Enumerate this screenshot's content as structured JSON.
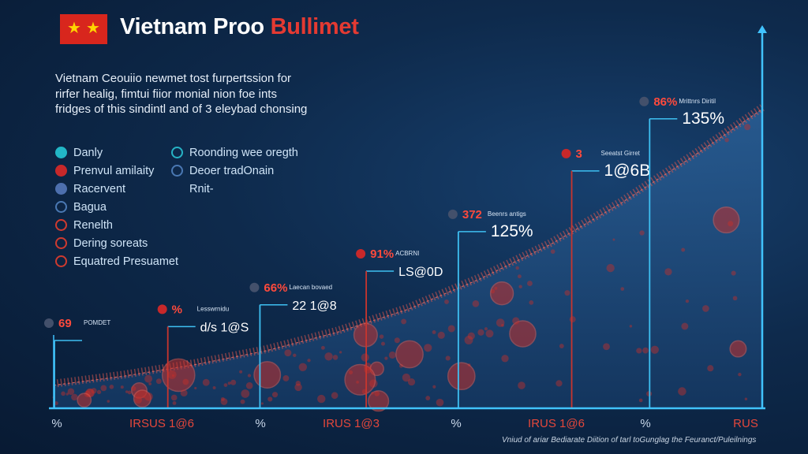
{
  "header": {
    "title_white": "Vietnam Proo",
    "title_red": "Bullimet",
    "flag": {
      "color": "#d8261d",
      "star_color": "#ffd400",
      "icon": "star-icon"
    }
  },
  "description": "Vietnam Ceouiio newmet tost furpertssion for rirfer healig, fimtui fiior monial nion foe ints fridges of this sindintl and of 3 eleybad chonsing",
  "legend": {
    "left": [
      {
        "label": "Danly",
        "icon": "teal-dot-icon"
      },
      {
        "label": "Prenvul amilaity",
        "icon": "red-pin-icon"
      },
      {
        "label": "Racervent",
        "icon": "blue-bubble-icon"
      },
      {
        "label": "Bagua",
        "icon": "blue-ring-icon"
      },
      {
        "label": "Renelth",
        "icon": "red-ring-icon"
      },
      {
        "label": "Dering soreats",
        "icon": "red-ring-icon"
      },
      {
        "label": "Equatred Presuamet",
        "icon": "red-ring-icon"
      }
    ],
    "right": [
      {
        "label": "Roonding wee oregth",
        "icon": "teal-ring-icon"
      },
      {
        "label": "Deoer tradOnain",
        "icon": "blue-ring-icon"
      },
      {
        "label": "Rnit-",
        "icon": "none"
      }
    ]
  },
  "chart_data": {
    "type": "area",
    "title": "",
    "xlabel": "",
    "ylabel": "",
    "ylim": [
      0,
      150
    ],
    "grid": false,
    "series_color": "#c9322c",
    "axis_color": "#41c3ff",
    "x_tick_labels": [
      "%",
      "IRSUS 1@6",
      "%",
      "IRUS 1@3",
      "%",
      "IRUS 1@6",
      "%",
      "RUS"
    ],
    "curve": [
      {
        "x": 0.0,
        "y": 10
      },
      {
        "x": 0.1,
        "y": 14
      },
      {
        "x": 0.2,
        "y": 19
      },
      {
        "x": 0.3,
        "y": 25
      },
      {
        "x": 0.4,
        "y": 33
      },
      {
        "x": 0.5,
        "y": 43
      },
      {
        "x": 0.6,
        "y": 56
      },
      {
        "x": 0.7,
        "y": 71
      },
      {
        "x": 0.8,
        "y": 89
      },
      {
        "x": 0.9,
        "y": 109
      },
      {
        "x": 1.0,
        "y": 130
      }
    ],
    "callouts": [
      {
        "x": 0.0,
        "pct": "69",
        "label": "POMDET",
        "big": ""
      },
      {
        "x": 0.16,
        "pct": "%",
        "label": "Lesswrnidu",
        "big": "d/s 1@S"
      },
      {
        "x": 0.29,
        "pct": "66%",
        "label": "Laecan bovaed",
        "big": "22 1@8"
      },
      {
        "x": 0.44,
        "pct": "91%",
        "label": "ACBRNI",
        "big": "LS@0D"
      },
      {
        "x": 0.57,
        "pct": "372",
        "label": "Beenrs antigs",
        "big": "125%"
      },
      {
        "x": 0.73,
        "pct": "3",
        "label": "Seeatst Girret",
        "big": "1@6B"
      },
      {
        "x": 0.84,
        "pct": "86%",
        "label": "Mrittnrs Diritil",
        "big": "135%"
      }
    ]
  },
  "footer": "Vniud of ariar Bediarate Diition of tarl toGunglag the Feuranct/Puleilnings"
}
